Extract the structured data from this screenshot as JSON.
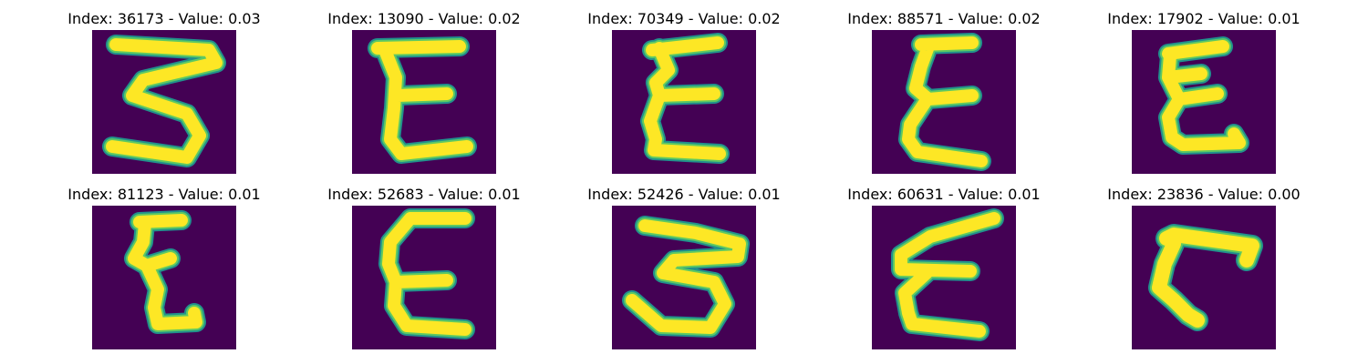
{
  "colors": {
    "background": "#440154",
    "stroke_core": "#fde725",
    "stroke_edge": "#21918c",
    "stroke_mid": "#5ec962"
  },
  "samples": [
    {
      "index": "36173",
      "value": "0.03",
      "title": "Index: 36173 - Value: 0.03",
      "glyph": "three-like stroke"
    },
    {
      "index": "13090",
      "value": "0.02",
      "title": "Index: 13090 - Value: 0.02",
      "glyph": "E-like stroke"
    },
    {
      "index": "70349",
      "value": "0.02",
      "title": "Index: 70349 - Value: 0.02",
      "glyph": "E-like stroke"
    },
    {
      "index": "88571",
      "value": "0.02",
      "title": "Index: 88571 - Value: 0.02",
      "glyph": "E-like stroke"
    },
    {
      "index": "17902",
      "value": "0.01",
      "title": "Index: 17902 - Value: 0.01",
      "glyph": "E-like stroke"
    },
    {
      "index": "81123",
      "value": "0.01",
      "title": "Index: 81123 - Value: 0.01",
      "glyph": "Z-like stroke"
    },
    {
      "index": "52683",
      "value": "0.01",
      "title": "Index: 52683 - Value: 0.01",
      "glyph": "E-like stroke"
    },
    {
      "index": "52426",
      "value": "0.01",
      "title": "Index: 52426 - Value: 0.01",
      "glyph": "three-like stroke"
    },
    {
      "index": "60631",
      "value": "0.01",
      "title": "Index: 60631 - Value: 0.01",
      "glyph": "E-like stroke"
    },
    {
      "index": "23836",
      "value": "0.00",
      "title": "Index: 23836 - Value: 0.00",
      "glyph": "L-like stroke"
    }
  ]
}
